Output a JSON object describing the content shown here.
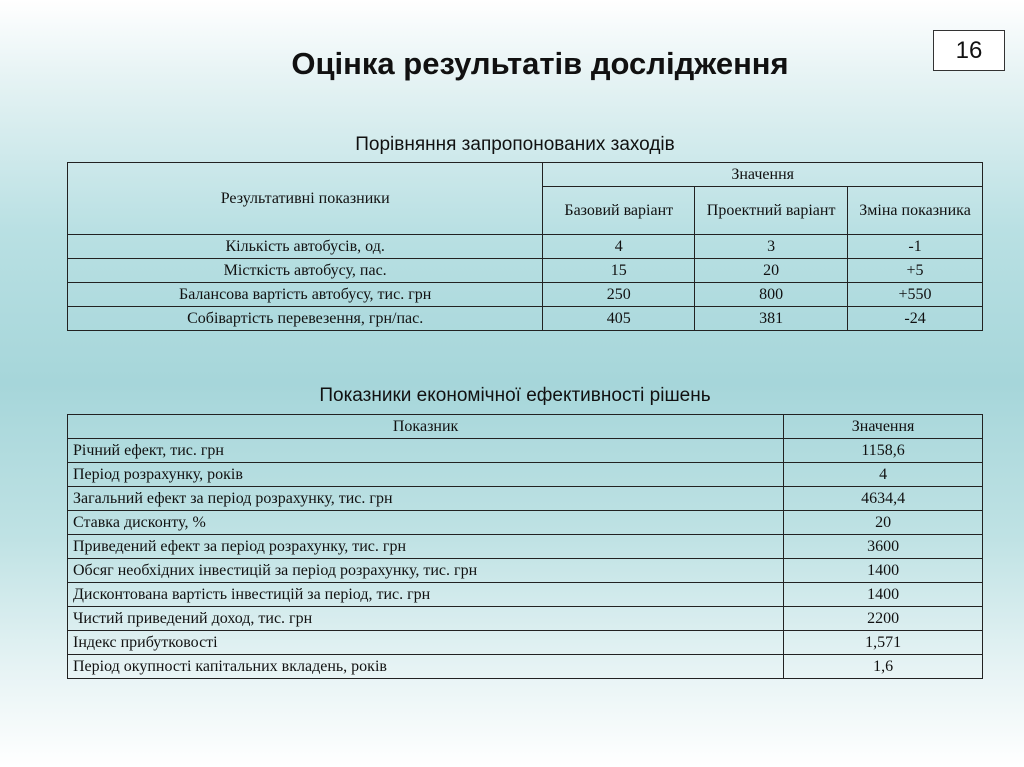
{
  "slide": {
    "title": "Оцінка результатів дослідження",
    "page_number": "16"
  },
  "comparison": {
    "caption": "Порівняння запропонованих заходів",
    "header": {
      "indicator": "Результативні показники",
      "values_group": "Значення",
      "base": "Базовий варіант",
      "project": "Проектний варіант",
      "change": "Зміна показника"
    },
    "rows": [
      {
        "name": "Кількість автобусів, од.",
        "base": "4",
        "project": "3",
        "change": "-1"
      },
      {
        "name": "Місткість автобусу, пас.",
        "base": "15",
        "project": "20",
        "change": "+5"
      },
      {
        "name": "Балансова вартість автобусу, тис. грн",
        "base": "250",
        "project": "800",
        "change": "+550"
      },
      {
        "name": "Собівартість перевезення, грн/пас.",
        "base": "405",
        "project": "381",
        "change": "-24"
      }
    ]
  },
  "efficiency": {
    "caption": "Показники економічної ефективності рішень",
    "header": {
      "indicator": "Показник",
      "value": "Значення"
    },
    "rows": [
      {
        "name": "Річний ефект, тис. грн",
        "value": "1158,6"
      },
      {
        "name": "Період розрахунку, років",
        "value": "4"
      },
      {
        "name": "Загальний ефект за період розрахунку, тис. грн",
        "value": "4634,4"
      },
      {
        "name": "Ставка дисконту, %",
        "value": "20"
      },
      {
        "name": "Приведений ефект за період розрахунку, тис. грн",
        "value": "3600"
      },
      {
        "name": "Обсяг необхідних інвестицій за період розрахунку, тис. грн",
        "value": "1400"
      },
      {
        "name": "Дисконтована вартість інвестицій за період, тис. грн",
        "value": "1400"
      },
      {
        "name": "Чистий приведений доход, тис. грн",
        "value": "2200"
      },
      {
        "name": "Індекс прибутковості",
        "value": "1,571"
      },
      {
        "name": "Період окупності капітальних вкладень, років",
        "value": "1,6"
      }
    ]
  }
}
